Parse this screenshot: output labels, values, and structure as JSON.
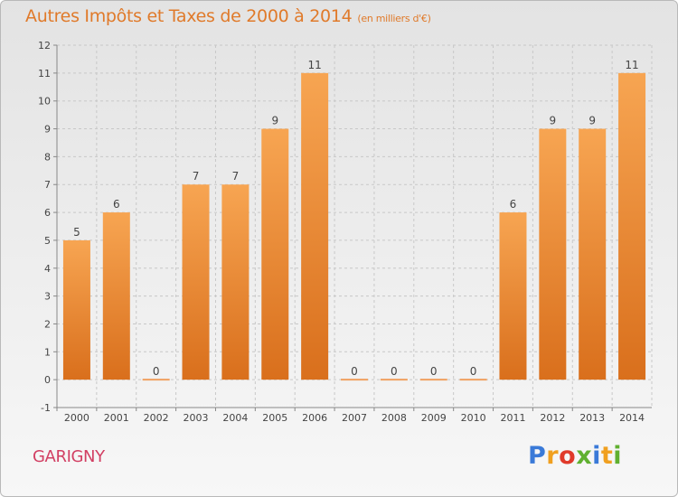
{
  "chart_data": {
    "type": "bar",
    "title": "Autres Impôts et Taxes de 2000 à 2014",
    "subtitle": "(en milliers d'€)",
    "categories": [
      "2000",
      "2001",
      "2002",
      "2003",
      "2004",
      "2005",
      "2006",
      "2007",
      "2008",
      "2009",
      "2010",
      "2011",
      "2012",
      "2013",
      "2014"
    ],
    "values": [
      5,
      6,
      0,
      7,
      7,
      9,
      11,
      0,
      0,
      0,
      0,
      6,
      9,
      9,
      11
    ],
    "ylim": [
      -1,
      12
    ],
    "yticks": [
      -1,
      0,
      1,
      2,
      3,
      4,
      5,
      6,
      7,
      8,
      9,
      10,
      11,
      12
    ],
    "grid": true,
    "bar_color": "#f08a30",
    "xlabel": "",
    "ylabel": ""
  },
  "commune": "GARIGNY",
  "logo": {
    "text": "Proxiti",
    "letters": [
      "P",
      "r",
      "o",
      "x",
      "i",
      "t",
      "i"
    ],
    "colors": [
      "#3a7ad8",
      "#f0a020",
      "#e03a2a",
      "#60b030",
      "#3a7ad8",
      "#f0a020",
      "#60b030"
    ]
  }
}
